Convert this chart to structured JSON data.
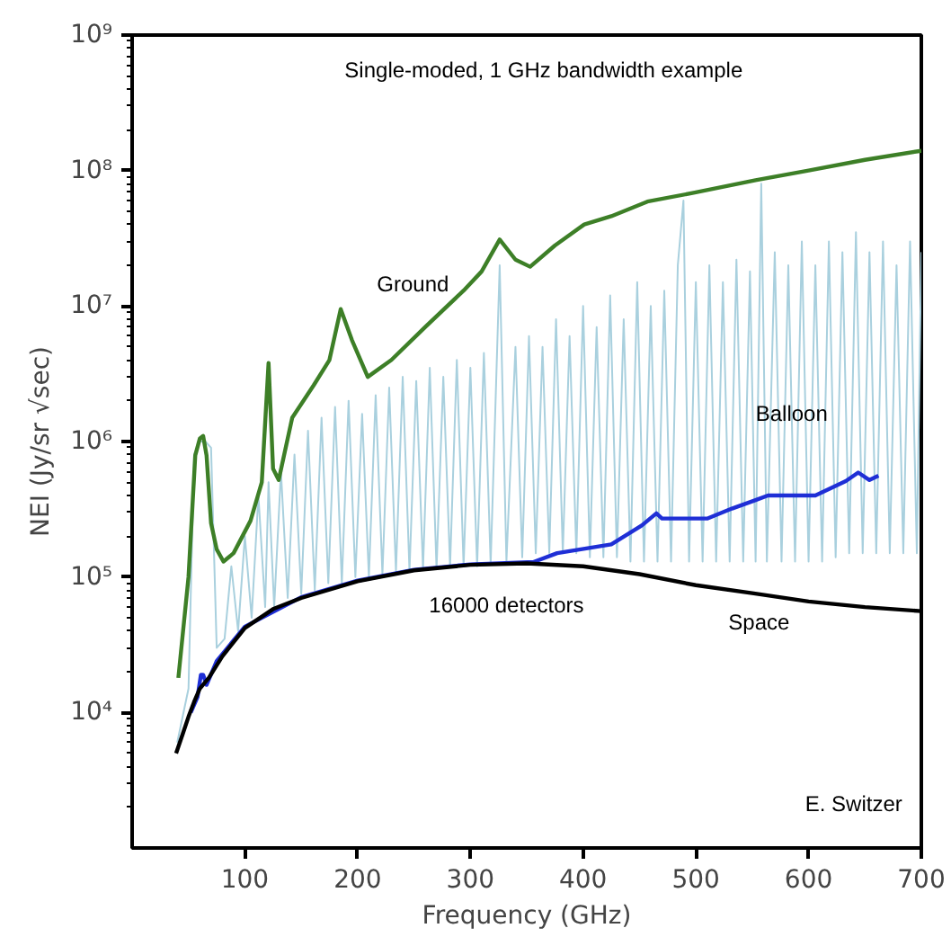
{
  "chart_data": {
    "type": "line",
    "xlabel": "Frequency (GHz)",
    "ylabel": "NEI (Jy/sr √sec)",
    "annotations": [
      "Single-moded, 1 GHz bandwidth example",
      "16000 detectors",
      "E. Switzer"
    ],
    "xlim": [
      0,
      700
    ],
    "xticks": [
      100,
      200,
      300,
      400,
      500,
      600,
      700
    ],
    "ylim": [
      1000,
      1000000000
    ],
    "yticks": [
      {
        "value": 10000,
        "label": "10⁴"
      },
      {
        "value": 100000,
        "label": "10⁵"
      },
      {
        "value": 1000000,
        "label": "10⁶"
      },
      {
        "value": 10000000,
        "label": "10⁷"
      },
      {
        "value": 100000000,
        "label": "10⁸"
      },
      {
        "value": 1000000000,
        "label": "10⁹"
      }
    ],
    "log": "y",
    "grid": false,
    "line_style": "solid",
    "marker": "none",
    "series": [
      {
        "color": "#a9d0de",
        "x": [
          40,
          50,
          55,
          60,
          65,
          70,
          75,
          82,
          88,
          94,
          100,
          106,
          112,
          118,
          121,
          126,
          132,
          138,
          144,
          150,
          156,
          162,
          168,
          174,
          180,
          186,
          192,
          198,
          204,
          210,
          216,
          222,
          228,
          234,
          240,
          246,
          252,
          258,
          264,
          270,
          276,
          282,
          288,
          294,
          300,
          306,
          312,
          318,
          326,
          332,
          340,
          346,
          352,
          358,
          364,
          370,
          376,
          382,
          388,
          394,
          400,
          406,
          412,
          418,
          424,
          430,
          436,
          442,
          448,
          454,
          460,
          466,
          472,
          478,
          484,
          489,
          494,
          500,
          506,
          512,
          518,
          524,
          530,
          536,
          542,
          548,
          553,
          558,
          563,
          570,
          576,
          582,
          588,
          594,
          600,
          606,
          612,
          618,
          624,
          630,
          636,
          642,
          648,
          654,
          660,
          666,
          672,
          678,
          684,
          690,
          696,
          700
        ],
        "values": [
          6000,
          15000,
          800000,
          1000000,
          1000000,
          900000,
          30000,
          35000,
          120000,
          40000,
          200000,
          50000,
          400000,
          60000,
          500000,
          60000,
          600000,
          70000,
          800000,
          75000,
          1200000,
          80000,
          1500000,
          90000,
          1800000,
          90000,
          2000000,
          100000,
          1600000,
          100000,
          2200000,
          105000,
          2500000,
          110000,
          3000000,
          110000,
          2800000,
          115000,
          3500000,
          115000,
          3000000,
          120000,
          4000000,
          120000,
          3500000,
          120000,
          4500000,
          125000,
          20000000,
          130000,
          5000000,
          140000,
          6000000,
          150000,
          5000000,
          150000,
          8000000,
          150000,
          6000000,
          150000,
          10000000,
          140000,
          7000000,
          140000,
          12000000,
          140000,
          8000000,
          130000,
          15000000,
          130000,
          10000000,
          130000,
          13000000,
          130000,
          20000000,
          60000000,
          130000,
          15000000,
          130000,
          20000000,
          130000,
          15000000,
          130000,
          22000000,
          130000,
          18000000,
          130000,
          80000000,
          130000,
          25000000,
          130000,
          20000000,
          130000,
          30000000,
          130000,
          20000000,
          130000,
          30000000,
          140000,
          25000000,
          150000,
          35000000,
          150000,
          25000000,
          150000,
          30000000,
          150000,
          20000000,
          150000,
          30000000,
          150000,
          25000000
        ]
      },
      {
        "name": "Ground",
        "color": "#3d7f27",
        "x": [
          41,
          50,
          56,
          60,
          63,
          66,
          70,
          75,
          81,
          90,
          105,
          115,
          121,
          125,
          130,
          142,
          161,
          175,
          185,
          195,
          209,
          230,
          260,
          294,
          310,
          326,
          340,
          353,
          375,
          401,
          425,
          457,
          500,
          553,
          600,
          650,
          700
        ],
        "values": [
          18000,
          100000,
          790000,
          1050000,
          1100000,
          790000,
          250000,
          160000,
          130000,
          150000,
          260000,
          500000,
          3800000,
          630000,
          520000,
          1500000,
          2600000,
          4000000,
          9500000,
          5600000,
          3000000,
          4000000,
          7000000,
          13000000,
          18000000,
          31000000,
          22000000,
          19500000,
          28000000,
          40000000,
          46000000,
          59000000,
          69000000,
          85000000,
          100000000,
          120000000,
          140000000
        ]
      },
      {
        "name": "Balloon",
        "color": "#1f2fd6",
        "x": [
          52,
          58,
          61,
          63,
          66,
          75,
          100,
          150,
          200,
          250,
          300,
          356,
          377,
          425,
          452,
          465,
          470,
          510,
          532,
          553,
          564,
          606,
          633,
          644,
          654,
          662
        ],
        "values": [
          10000,
          13000,
          19000,
          19000,
          16000,
          24000,
          43000,
          71000,
          94000,
          113000,
          124000,
          129000,
          150000,
          174000,
          240000,
          295000,
          270000,
          270000,
          320000,
          370000,
          400000,
          400000,
          510000,
          590000,
          520000,
          560000
        ]
      },
      {
        "name": "Space",
        "color": "#000000",
        "x": [
          39,
          45,
          50,
          55,
          60,
          68,
          80,
          100,
          125,
          150,
          200,
          250,
          300,
          350,
          400,
          450,
          500,
          550,
          600,
          650,
          700
        ],
        "values": [
          5000,
          7000,
          9300,
          12000,
          15000,
          18000,
          26000,
          42000,
          58000,
          70000,
          93000,
          112000,
          123000,
          126000,
          120000,
          105000,
          87000,
          76000,
          66000,
          60000,
          56000
        ]
      }
    ]
  }
}
